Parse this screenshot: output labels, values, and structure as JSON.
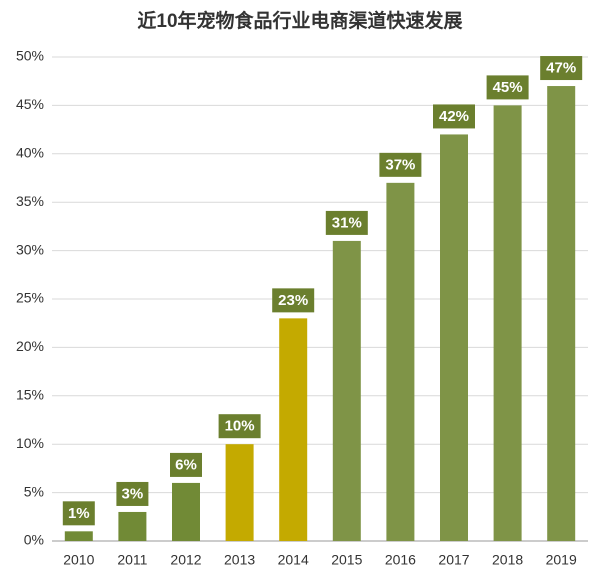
{
  "chart_data": {
    "type": "bar",
    "title": "近10年宠物食品行业电商渠道快速发展",
    "categories": [
      "2010",
      "2011",
      "2012",
      "2013",
      "2014",
      "2015",
      "2016",
      "2017",
      "2018",
      "2019"
    ],
    "values": [
      1,
      3,
      6,
      10,
      23,
      31,
      37,
      42,
      45,
      47
    ],
    "value_labels": [
      "1%",
      "3%",
      "6%",
      "10%",
      "23%",
      "31%",
      "37%",
      "42%",
      "45%",
      "47%"
    ],
    "colors": [
      "#718a36",
      "#718a36",
      "#718a36",
      "#c4aa00",
      "#c4aa00",
      "#7f9447",
      "#7f9447",
      "#7f9447",
      "#7f9447",
      "#7f9447"
    ],
    "value_label_color": "#6b7f2e",
    "ylim": [
      0,
      50
    ],
    "yticks": [
      {
        "value": 0,
        "label": "0%"
      },
      {
        "value": 5,
        "label": "5%"
      },
      {
        "value": 10,
        "label": "10%"
      },
      {
        "value": 15,
        "label": "15%"
      },
      {
        "value": 20,
        "label": "20%"
      },
      {
        "value": 25,
        "label": "25%"
      },
      {
        "value": 30,
        "label": "30%"
      },
      {
        "value": 35,
        "label": "35%"
      },
      {
        "value": 40,
        "label": "40%"
      },
      {
        "value": 45,
        "label": "45%"
      },
      {
        "value": 50,
        "label": "50%"
      }
    ],
    "grid": true
  }
}
